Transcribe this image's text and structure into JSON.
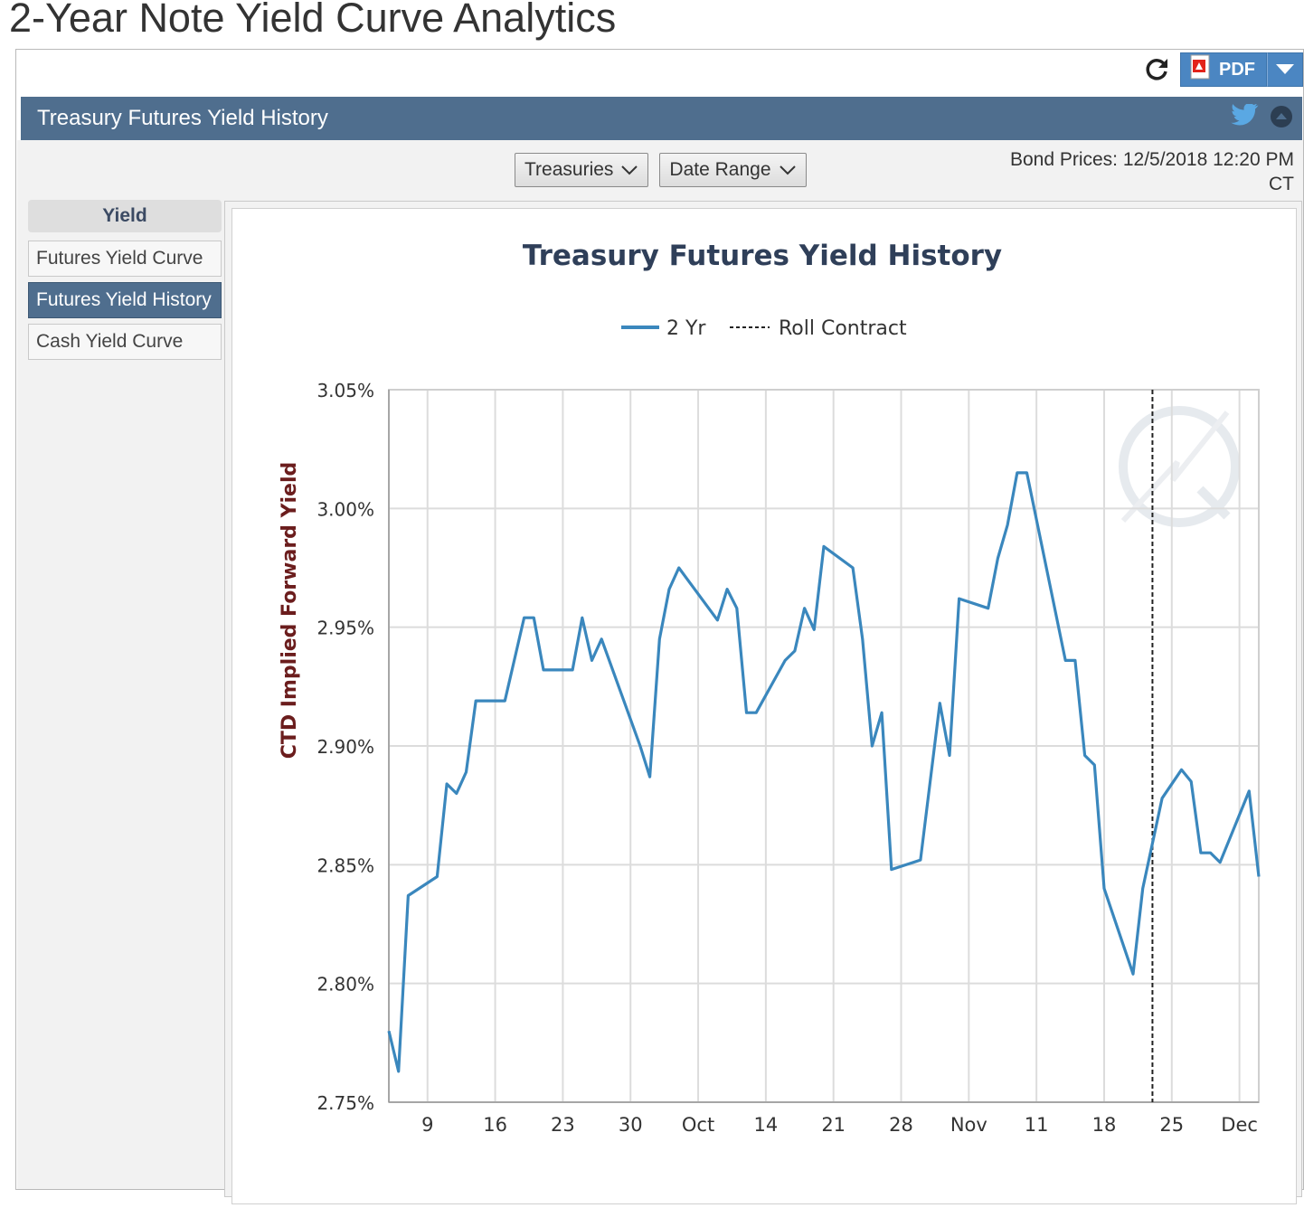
{
  "page": {
    "title": "2-Year Note Yield Curve Analytics"
  },
  "toolbar": {
    "pdf_label": "PDF",
    "refresh_icon": "refresh-icon",
    "pdf_icon": "pdf-file-icon",
    "dropdown_icon": "caret-down-icon"
  },
  "panel": {
    "title": "Treasury Futures Yield History",
    "twitter_icon": "twitter-icon",
    "collapse_icon": "collapse-icon"
  },
  "filters": {
    "treasuries_label": "Treasuries",
    "date_range_label": "Date Range"
  },
  "bond_prices": {
    "line1": "Bond Prices: 12/5/2018 12:20 PM",
    "line2": "CT"
  },
  "sidebar": {
    "heading": "Yield",
    "items": [
      {
        "label": "Futures Yield Curve",
        "active": false
      },
      {
        "label": "Futures Yield History",
        "active": true
      },
      {
        "label": "Cash Yield Curve",
        "active": false
      }
    ]
  },
  "colors": {
    "series": "#3a87bd",
    "header": "#4f6e8e",
    "axis_title": "#6b1d1d",
    "chart_title": "#2f3f59"
  },
  "chart_data": {
    "type": "line",
    "title": "Treasury Futures Yield History",
    "ylabel": "CTD Implied Forward Yield",
    "xlabel": "",
    "ylim": [
      2.75,
      3.05
    ],
    "yticks": [
      "3.05%",
      "3.00%",
      "2.95%",
      "2.90%",
      "2.85%",
      "2.80%",
      "2.75%"
    ],
    "xticks": [
      {
        "label": "9",
        "date": "2018-08-09"
      },
      {
        "label": "16",
        "date": "2018-08-16"
      },
      {
        "label": "23",
        "date": "2018-08-23"
      },
      {
        "label": "30",
        "date": "2018-08-30"
      },
      {
        "label": "Oct",
        "date": "2018-09-06"
      },
      {
        "label": "14",
        "date": "2018-09-13"
      },
      {
        "label": "21",
        "date": "2018-09-20"
      },
      {
        "label": "28",
        "date": "2018-09-27"
      },
      {
        "label": "Nov",
        "date": "2018-10-04"
      },
      {
        "label": "11",
        "date": "2018-10-11"
      },
      {
        "label": "18",
        "date": "2018-10-18"
      },
      {
        "label": "25",
        "date": "2018-10-25"
      },
      {
        "label": "Dec",
        "date": "2018-11-01"
      }
    ],
    "xlim": [
      "2018-08-05",
      "2018-11-03"
    ],
    "grid": true,
    "legend_position": "top-center",
    "roll_contract_date": "2018-10-23",
    "series": [
      {
        "name": "2 Yr",
        "points": [
          [
            "2018-08-05",
            2.78
          ],
          [
            "2018-08-06",
            2.763
          ],
          [
            "2018-08-07",
            2.837
          ],
          [
            "2018-08-10",
            2.845
          ],
          [
            "2018-08-11",
            2.884
          ],
          [
            "2018-08-12",
            2.88
          ],
          [
            "2018-08-13",
            2.889
          ],
          [
            "2018-08-14",
            2.919
          ],
          [
            "2018-08-17",
            2.919
          ],
          [
            "2018-08-19",
            2.954
          ],
          [
            "2018-08-20",
            2.954
          ],
          [
            "2018-08-21",
            2.932
          ],
          [
            "2018-08-24",
            2.932
          ],
          [
            "2018-08-25",
            2.954
          ],
          [
            "2018-08-26",
            2.936
          ],
          [
            "2018-08-27",
            2.945
          ],
          [
            "2018-08-31",
            2.9
          ],
          [
            "2018-09-01",
            2.887
          ],
          [
            "2018-09-02",
            2.945
          ],
          [
            "2018-09-03",
            2.966
          ],
          [
            "2018-09-04",
            2.975
          ],
          [
            "2018-09-08",
            2.953
          ],
          [
            "2018-09-09",
            2.966
          ],
          [
            "2018-09-10",
            2.958
          ],
          [
            "2018-09-11",
            2.914
          ],
          [
            "2018-09-12",
            2.914
          ],
          [
            "2018-09-15",
            2.936
          ],
          [
            "2018-09-16",
            2.94
          ],
          [
            "2018-09-17",
            2.958
          ],
          [
            "2018-09-18",
            2.949
          ],
          [
            "2018-09-19",
            2.984
          ],
          [
            "2018-09-22",
            2.975
          ],
          [
            "2018-09-23",
            2.945
          ],
          [
            "2018-09-24",
            2.9
          ],
          [
            "2018-09-25",
            2.914
          ],
          [
            "2018-09-26",
            2.848
          ],
          [
            "2018-09-29",
            2.852
          ],
          [
            "2018-10-01",
            2.918
          ],
          [
            "2018-10-02",
            2.896
          ],
          [
            "2018-10-03",
            2.962
          ],
          [
            "2018-10-06",
            2.958
          ],
          [
            "2018-10-07",
            2.979
          ],
          [
            "2018-10-08",
            2.993
          ],
          [
            "2018-10-09",
            3.015
          ],
          [
            "2018-10-10",
            3.015
          ],
          [
            "2018-10-14",
            2.936
          ],
          [
            "2018-10-15",
            2.936
          ],
          [
            "2018-10-16",
            2.896
          ],
          [
            "2018-10-17",
            2.892
          ],
          [
            "2018-10-18",
            2.84
          ],
          [
            "2018-10-21",
            2.804
          ],
          [
            "2018-10-22",
            2.84
          ],
          [
            "2018-10-24",
            2.878
          ],
          [
            "2018-10-26",
            2.89
          ],
          [
            "2018-10-27",
            2.885
          ],
          [
            "2018-10-28",
            2.855
          ],
          [
            "2018-10-29",
            2.855
          ],
          [
            "2018-10-30",
            2.851
          ],
          [
            "2018-11-02",
            2.881
          ],
          [
            "2018-11-03",
            2.845
          ]
        ]
      }
    ],
    "legend": {
      "series_label": "2 Yr",
      "roll_label": "Roll Contract"
    }
  }
}
